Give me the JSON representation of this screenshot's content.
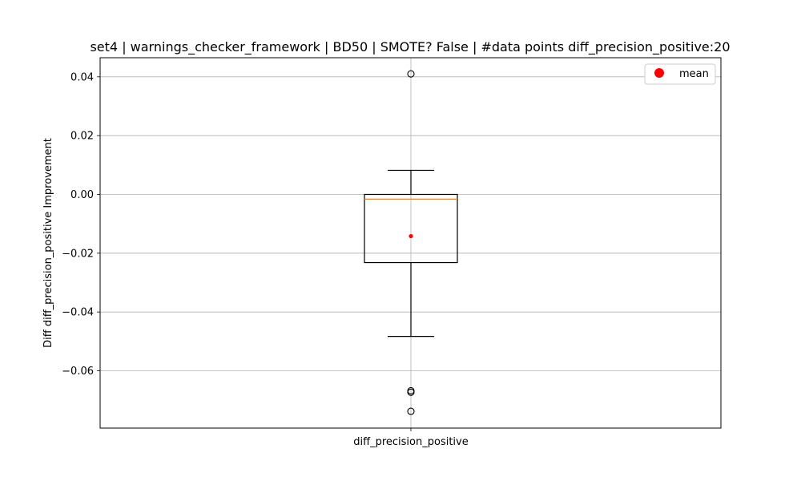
{
  "chart_data": {
    "type": "box",
    "title": "set4 | warnings_checker_framework | BD50 | SMOTE? False | #data points diff_precision_positive:20",
    "xlabel": "",
    "ylabel": "Diff diff_precision_positive Improvement",
    "categories": [
      "diff_precision_positive"
    ],
    "ylim": [
      -0.0795,
      0.0465
    ],
    "yticks": [
      0.04,
      0.02,
      0.0,
      -0.02,
      -0.04,
      -0.06
    ],
    "ytick_labels": [
      "0.04",
      "0.02",
      "0.00",
      "−0.02",
      "−0.04",
      "−0.06"
    ],
    "grid": true,
    "legend": {
      "position": "top-right",
      "entries": [
        {
          "label": "mean",
          "color": "#ff0000",
          "marker": "circle"
        }
      ]
    },
    "box": {
      "q1": -0.0232,
      "median": -0.0016,
      "q3": 0.0,
      "whisker_low": -0.0483,
      "whisker_high": 0.0082,
      "mean": -0.0142,
      "outliers": [
        0.041,
        -0.0668,
        -0.0673,
        -0.0738
      ]
    },
    "colors": {
      "box": "#000000",
      "median": "#ff7f0e",
      "mean": "#ff0000",
      "grid": "#b0b0b0"
    }
  }
}
